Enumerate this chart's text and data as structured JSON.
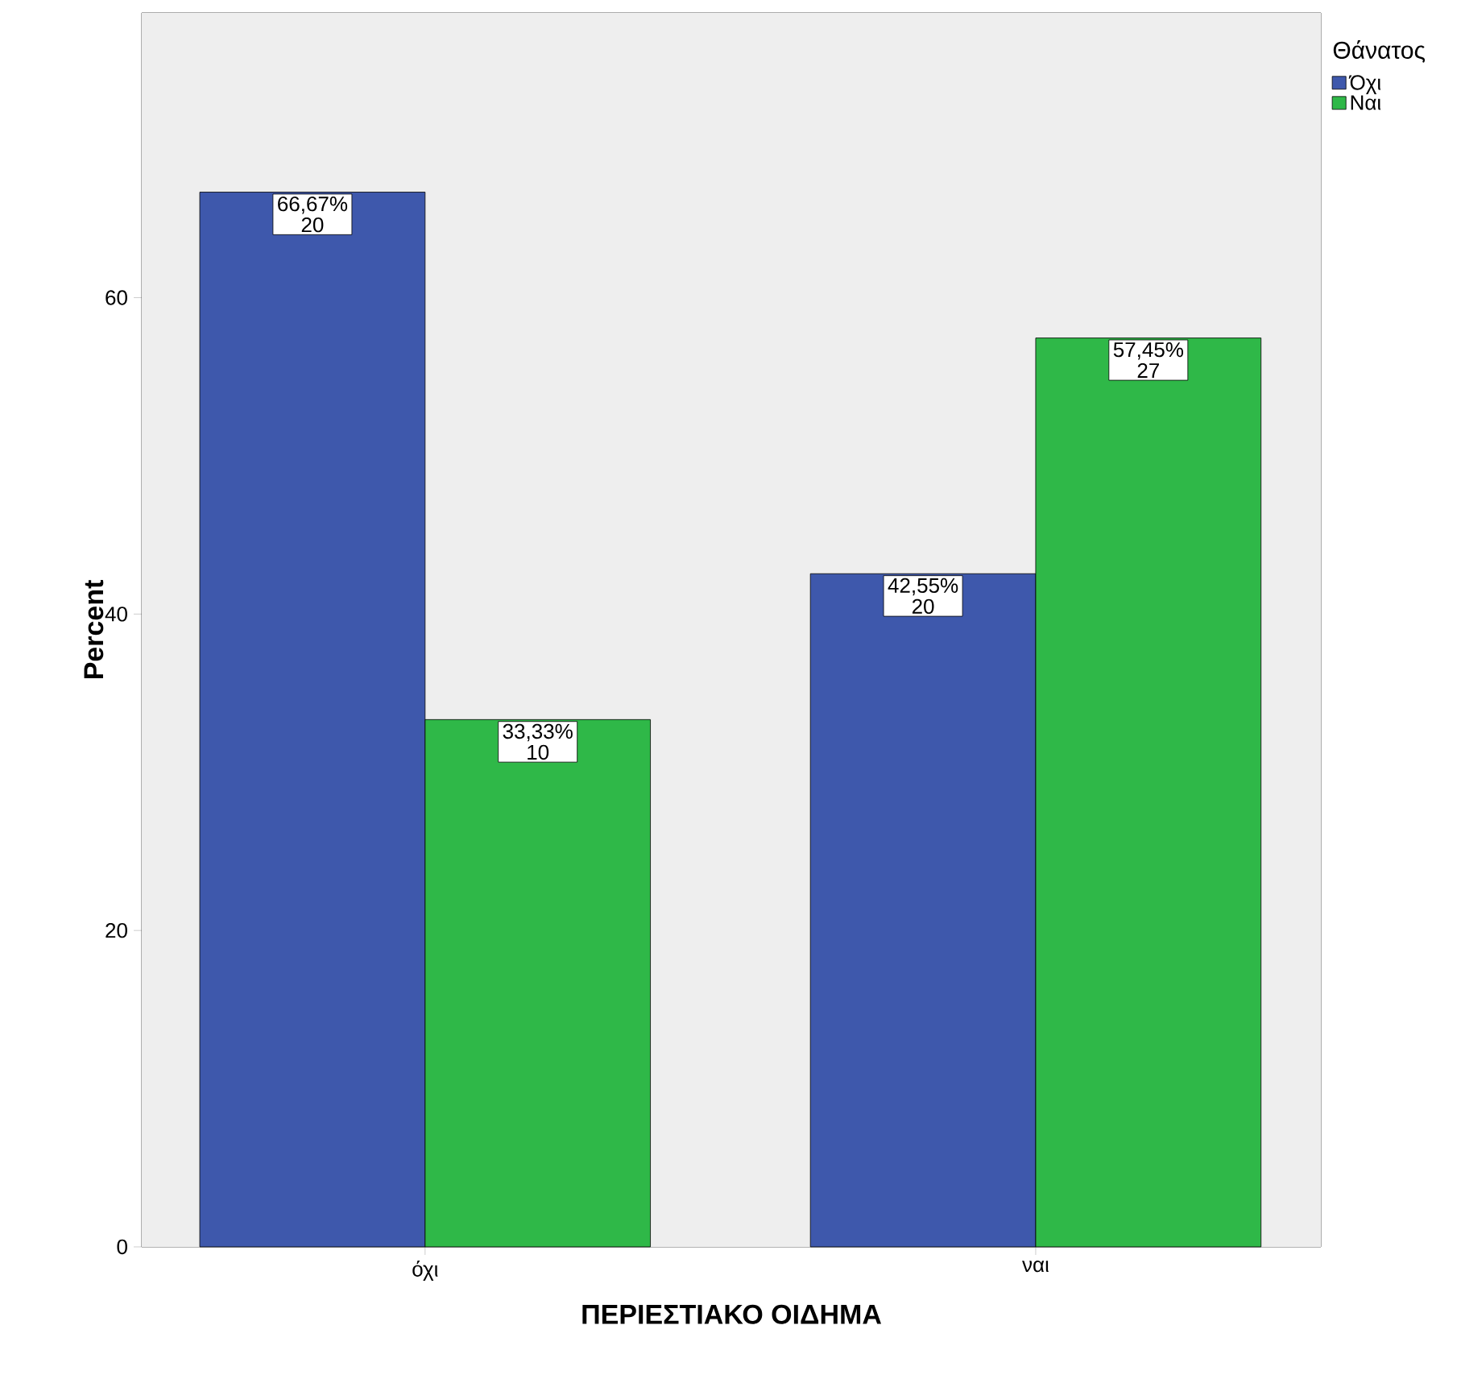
{
  "chart_data": {
    "type": "bar",
    "xlabel": "ΠΕΡΙΕΣΤΙΑΚΟ ΟΙΔΗΜΑ",
    "ylabel": "Percent",
    "legend_title": "Θάνατος",
    "categories": [
      "όχι",
      "ναι"
    ],
    "series": [
      {
        "name": "Όχι",
        "color": "#3e58ac",
        "values": [
          66.67,
          42.55
        ],
        "value_labels": [
          "66,67% 20",
          "42,55% 20"
        ]
      },
      {
        "name": "Ναι",
        "color": "#2fb848",
        "values": [
          33.33,
          57.45
        ],
        "value_labels": [
          "33,33% 10",
          "57,45% 27"
        ]
      }
    ],
    "ylim": [
      0,
      78
    ],
    "yticks": [
      0,
      20,
      40,
      60
    ],
    "grid": false,
    "legend": "top right"
  }
}
